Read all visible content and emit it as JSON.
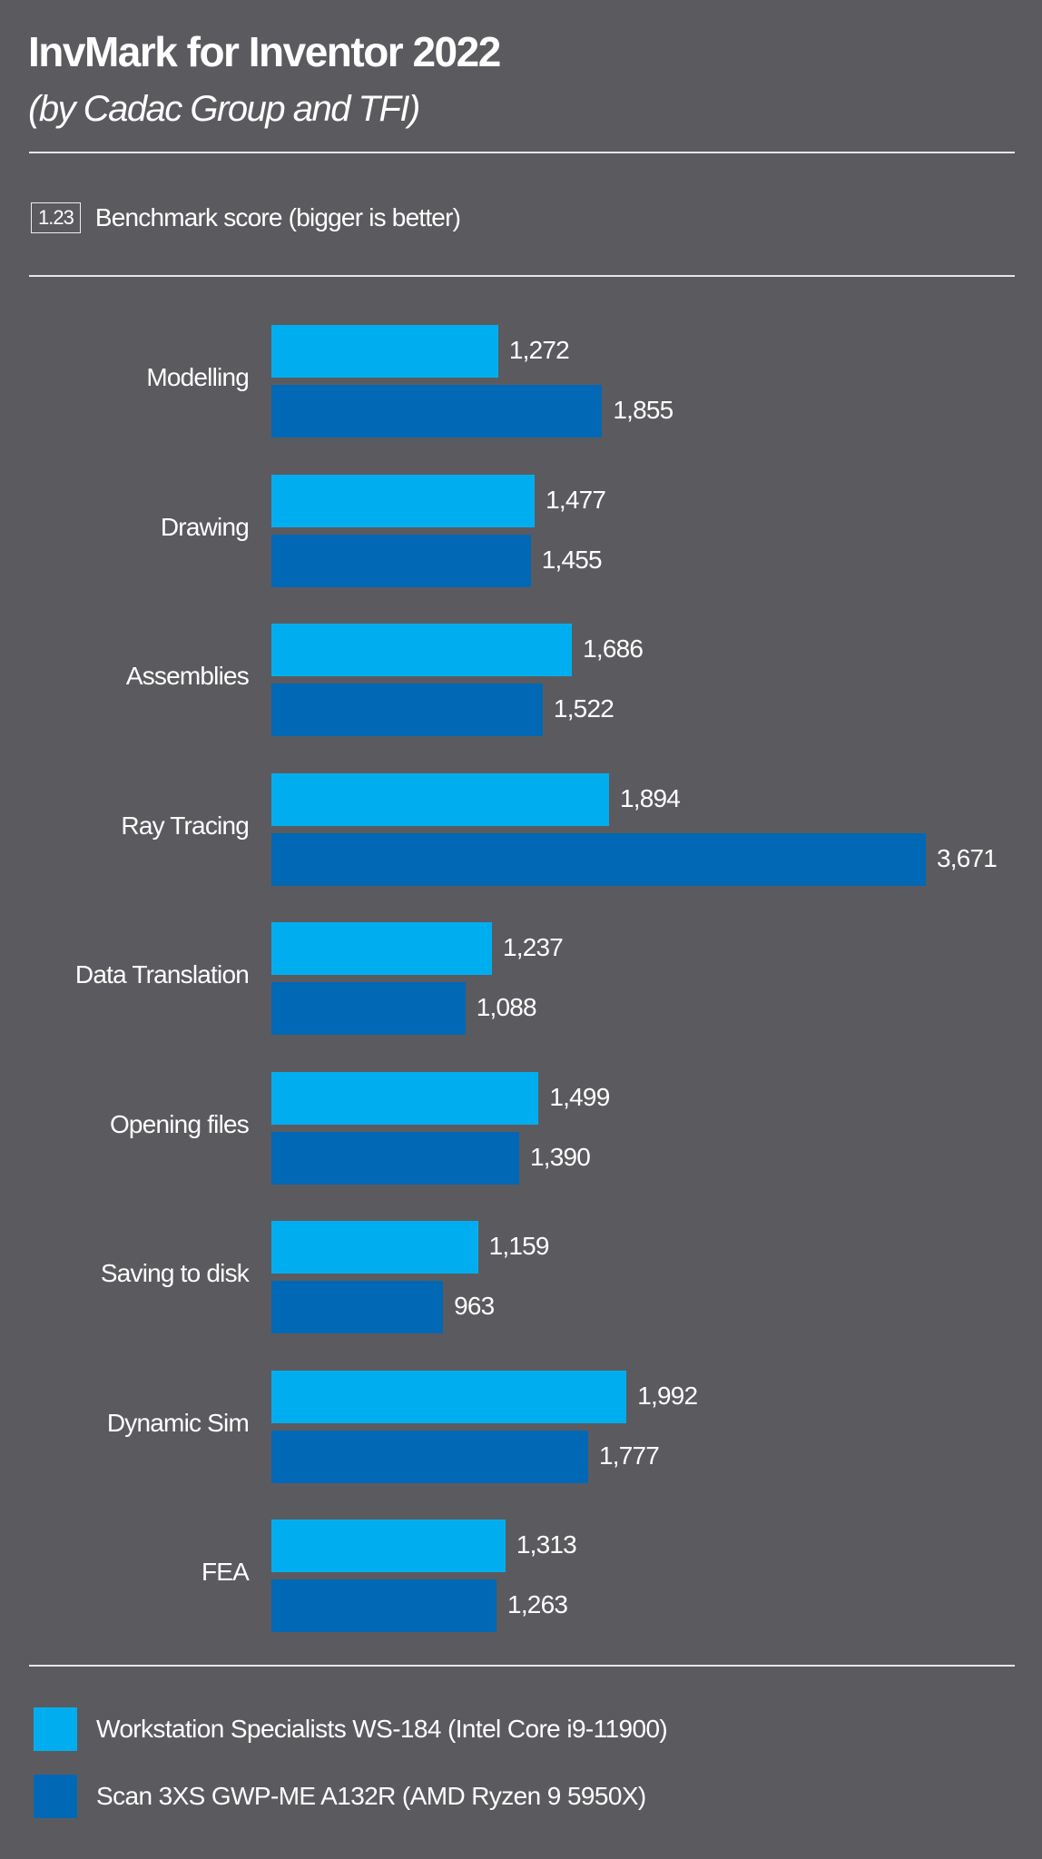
{
  "chart_data": {
    "type": "bar",
    "orientation": "horizontal",
    "title": "InvMark for Inventor 2022",
    "subtitle": "(by Cadac Group and TFI)",
    "key_sample": "1.23",
    "key_text": "Benchmark score (bigger is better)",
    "categories": [
      "Modelling",
      "Drawing",
      "Assemblies",
      "Ray Tracing",
      "Data Translation",
      "Opening files",
      "Saving to disk",
      "Dynamic Sim",
      "FEA"
    ],
    "series": [
      {
        "name": "Workstation Specialists WS-184 (Intel Core i9-11900)",
        "color": "#00aeef",
        "values": [
          1272,
          1477,
          1686,
          1894,
          1237,
          1499,
          1159,
          1992,
          1313
        ],
        "labels": [
          "1,272",
          "1,477",
          "1,686",
          "1,894",
          "1,237",
          "1,499",
          "1,159",
          "1,992",
          "1,313"
        ]
      },
      {
        "name": "Scan 3XS GWP-ME A132R (AMD Ryzen 9 5950X)",
        "color": "#0068b5",
        "values": [
          1855,
          1455,
          1522,
          3671,
          1088,
          1390,
          963,
          1777,
          1263
        ],
        "labels": [
          "1,855",
          "1,455",
          "1,522",
          "3,671",
          "1,088",
          "1,390",
          "963",
          "1,777",
          "1,263"
        ]
      }
    ],
    "xlim": [
      0,
      3671
    ],
    "grid": false,
    "legend": "bottom"
  }
}
